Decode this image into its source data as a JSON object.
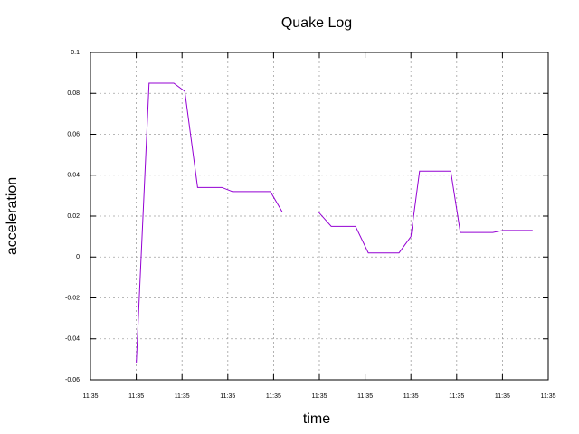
{
  "chart_data": {
    "type": "line",
    "title": "Quake Log",
    "xlabel": "time",
    "ylabel": "acceleration",
    "x": [
      1.0,
      1.28,
      1.82,
      2.06,
      2.34,
      2.87,
      3.1,
      3.93,
      4.19,
      4.98,
      5.26,
      5.79,
      6.07,
      6.74,
      7.0,
      7.19,
      7.87,
      8.08,
      8.79,
      9.01,
      9.66
    ],
    "series": [
      {
        "name": "acceleration",
        "color": "#9400d3",
        "values": [
          -0.052,
          0.085,
          0.085,
          0.081,
          0.034,
          0.034,
          0.032,
          0.032,
          0.022,
          0.022,
          0.015,
          0.015,
          0.002,
          0.002,
          0.01,
          0.042,
          0.042,
          0.012,
          0.012,
          0.013,
          0.013
        ]
      }
    ],
    "xlim": [
      0,
      10
    ],
    "xticks": [
      {
        "value": 0,
        "label": "11:35"
      },
      {
        "value": 1,
        "label": "11:35"
      },
      {
        "value": 2,
        "label": "11:35"
      },
      {
        "value": 3,
        "label": "11:35"
      },
      {
        "value": 4,
        "label": "11:35"
      },
      {
        "value": 5,
        "label": "11:35"
      },
      {
        "value": 6,
        "label": "11:35"
      },
      {
        "value": 7,
        "label": "11:35"
      },
      {
        "value": 8,
        "label": "11:35"
      },
      {
        "value": 9,
        "label": "11:35"
      },
      {
        "value": 10,
        "label": "11:35"
      }
    ],
    "ylim": [
      -0.06,
      0.1
    ],
    "yticks": [
      -0.06,
      -0.04,
      -0.02,
      0,
      0.02,
      0.04,
      0.06,
      0.08,
      0.1
    ],
    "grid": true
  }
}
